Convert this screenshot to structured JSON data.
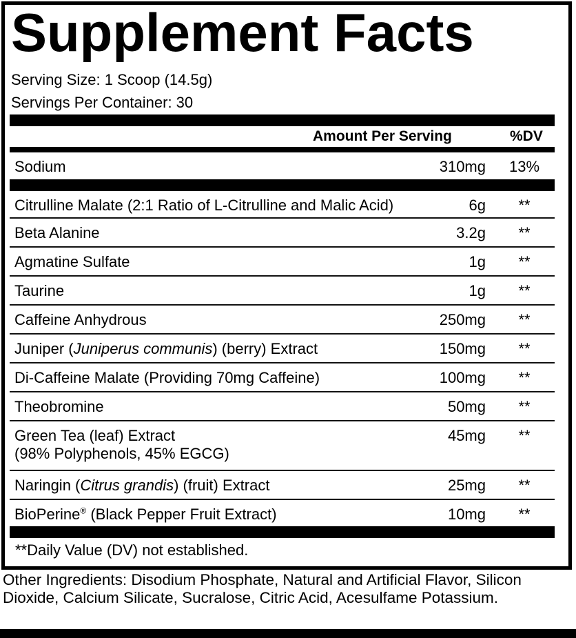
{
  "title": "Supplement Facts",
  "serving_size": "Serving Size: 1 Scoop (14.5g)",
  "servings_per_container": "Servings Per Container: 30",
  "header": {
    "amount": "Amount Per Serving",
    "dv": "%DV"
  },
  "sodium": {
    "name": "Sodium",
    "amount": "310mg",
    "dv": "13%"
  },
  "ingredients": [
    {
      "name": "Citrulline Malate (2:1 Ratio of L-Citrulline and Malic Acid)",
      "amount": "6g",
      "dv": "**"
    },
    {
      "name": "Beta Alanine",
      "amount": "3.2g",
      "dv": "**"
    },
    {
      "name": "Agmatine Sulfate",
      "amount": "1g",
      "dv": "**"
    },
    {
      "name": "Taurine",
      "amount": "1g",
      "dv": "**"
    },
    {
      "name": "Caffeine Anhydrous",
      "amount": "250mg",
      "dv": "**"
    },
    {
      "name_pre": "Juniper (",
      "name_italic": "Juniperus communis",
      "name_post": ") (berry) Extract",
      "amount": "150mg",
      "dv": "**"
    },
    {
      "name": "Di-Caffeine Malate (Providing 70mg Caffeine)",
      "amount": "100mg",
      "dv": "**"
    },
    {
      "name": "Theobromine",
      "amount": "50mg",
      "dv": "**"
    },
    {
      "name": "Green Tea (leaf) Extract",
      "name_line2": "(98% Polyphenols, 45% EGCG)",
      "amount": "45mg",
      "dv": "**"
    },
    {
      "name_pre": "Naringin (",
      "name_italic": "Citrus grandis",
      "name_post": ") (fruit) Extract",
      "amount": "25mg",
      "dv": "**"
    },
    {
      "name_pre": "BioPerine",
      "name_sup": "®",
      "name_post": " (Black Pepper Fruit Extract)",
      "amount": "10mg",
      "dv": "**"
    }
  ],
  "footnote": "**Daily Value (DV) not established.",
  "other_ingredients": "Other Ingredients: Disodium Phosphate, Natural and Artificial Flavor, Silicon Dioxide, Calcium Silicate, Sucralose, Citric Acid, Acesulfame Potassium."
}
